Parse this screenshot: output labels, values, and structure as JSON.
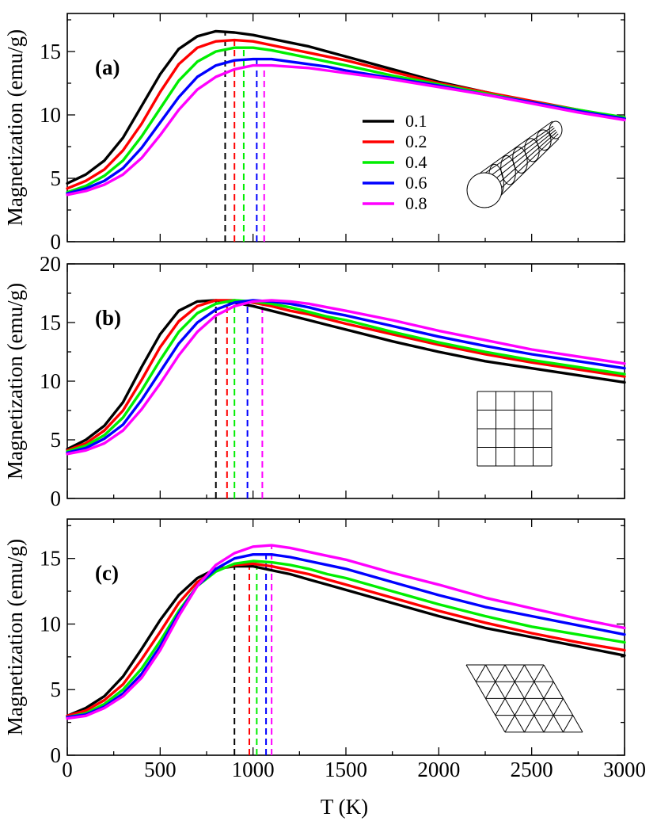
{
  "chart_data": [
    {
      "type": "line",
      "panel_label": "(a)",
      "xlabel": "T (K)",
      "ylabel": "Magnetization (emu/g)",
      "xlim": [
        0,
        3000
      ],
      "ylim": [
        0,
        18
      ],
      "xticks": [
        0,
        500,
        1000,
        1500,
        2000,
        2500,
        3000
      ],
      "yticks": [
        0,
        5,
        10,
        15
      ],
      "legend": [
        "0.1",
        "0.2",
        "0.4",
        "0.6",
        "0.8"
      ],
      "inset": "nanotube",
      "x": [
        0,
        100,
        200,
        300,
        400,
        500,
        600,
        700,
        800,
        900,
        1000,
        1100,
        1200,
        1300,
        1400,
        1500,
        1750,
        2000,
        2250,
        2500,
        2750,
        3000
      ],
      "series": [
        {
          "name": "0.1",
          "color": "#000000",
          "peak_T": 850,
          "values": [
            4.6,
            5.3,
            6.4,
            8.2,
            10.7,
            13.2,
            15.2,
            16.2,
            16.6,
            16.5,
            16.3,
            16.0,
            15.7,
            15.4,
            15.0,
            14.6,
            13.6,
            12.6,
            11.8,
            11.0,
            10.3,
            9.7
          ]
        },
        {
          "name": "0.2",
          "color": "#ff0000",
          "peak_T": 900,
          "values": [
            4.2,
            4.8,
            5.7,
            7.2,
            9.3,
            11.8,
            14.0,
            15.3,
            15.8,
            15.9,
            15.8,
            15.5,
            15.2,
            14.9,
            14.6,
            14.3,
            13.4,
            12.5,
            11.8,
            11.1,
            10.4,
            9.7
          ]
        },
        {
          "name": "0.4",
          "color": "#00ee00",
          "peak_T": 950,
          "values": [
            3.9,
            4.4,
            5.2,
            6.4,
            8.3,
            10.5,
            12.7,
            14.2,
            15.0,
            15.3,
            15.3,
            15.1,
            14.8,
            14.5,
            14.2,
            13.9,
            13.1,
            12.4,
            11.7,
            11.0,
            10.4,
            9.8
          ]
        },
        {
          "name": "0.6",
          "color": "#0000ff",
          "peak_T": 1020,
          "values": [
            3.8,
            4.2,
            4.8,
            5.8,
            7.4,
            9.4,
            11.4,
            13.0,
            13.9,
            14.3,
            14.4,
            14.4,
            14.2,
            14.0,
            13.8,
            13.5,
            12.9,
            12.3,
            11.6,
            11.0,
            10.3,
            9.7
          ]
        },
        {
          "name": "0.8",
          "color": "#ff00ff",
          "peak_T": 1060,
          "values": [
            3.7,
            4.0,
            4.5,
            5.3,
            6.6,
            8.4,
            10.4,
            12.0,
            13.0,
            13.6,
            13.9,
            13.9,
            13.8,
            13.7,
            13.5,
            13.3,
            12.8,
            12.2,
            11.6,
            10.9,
            10.2,
            9.6
          ]
        }
      ]
    },
    {
      "type": "line",
      "panel_label": "(b)",
      "xlabel": "T (K)",
      "ylabel": "Magnetization (emu/g)",
      "xlim": [
        0,
        3000
      ],
      "ylim": [
        0,
        20
      ],
      "xticks": [
        0,
        500,
        1000,
        1500,
        2000,
        2500,
        3000
      ],
      "yticks": [
        0,
        5,
        10,
        15,
        20
      ],
      "inset": "square-grid",
      "x": [
        0,
        100,
        200,
        300,
        400,
        500,
        600,
        700,
        800,
        900,
        1000,
        1100,
        1200,
        1300,
        1400,
        1500,
        1750,
        2000,
        2250,
        2500,
        2750,
        3000
      ],
      "series": [
        {
          "name": "0.1",
          "color": "#000000",
          "peak_T": 800,
          "values": [
            4.2,
            5.0,
            6.2,
            8.2,
            11.2,
            14.0,
            16.0,
            16.8,
            16.9,
            16.7,
            16.4,
            16.0,
            15.6,
            15.2,
            14.8,
            14.4,
            13.4,
            12.5,
            11.7,
            11.1,
            10.5,
            9.9
          ]
        },
        {
          "name": "0.2",
          "color": "#ff0000",
          "peak_T": 860,
          "values": [
            4.1,
            4.7,
            5.8,
            7.5,
            10.1,
            12.9,
            15.1,
            16.4,
            16.9,
            16.9,
            16.7,
            16.4,
            16.0,
            15.7,
            15.3,
            14.9,
            14.0,
            13.1,
            12.3,
            11.6,
            11.0,
            10.4
          ]
        },
        {
          "name": "0.4",
          "color": "#00ee00",
          "peak_T": 900,
          "values": [
            4.0,
            4.5,
            5.4,
            6.9,
            9.2,
            11.8,
            14.2,
            15.8,
            16.6,
            16.9,
            16.8,
            16.6,
            16.3,
            15.9,
            15.5,
            15.2,
            14.2,
            13.3,
            12.5,
            11.8,
            11.2,
            10.6
          ]
        },
        {
          "name": "0.6",
          "color": "#0000ff",
          "peak_T": 970,
          "values": [
            3.9,
            4.3,
            5.1,
            6.3,
            8.4,
            10.8,
            13.2,
            15.0,
            16.1,
            16.7,
            16.9,
            16.8,
            16.6,
            16.3,
            15.9,
            15.6,
            14.7,
            13.8,
            13.0,
            12.3,
            11.7,
            11.1
          ]
        },
        {
          "name": "0.8",
          "color": "#ff00ff",
          "peak_T": 1050,
          "values": [
            3.8,
            4.1,
            4.7,
            5.8,
            7.6,
            9.8,
            12.2,
            14.2,
            15.6,
            16.4,
            16.8,
            16.9,
            16.8,
            16.6,
            16.3,
            16.0,
            15.2,
            14.3,
            13.5,
            12.7,
            12.1,
            11.5
          ]
        }
      ]
    },
    {
      "type": "line",
      "panel_label": "(c)",
      "xlabel": "T (K)",
      "ylabel": "Magnetization (emu/g)",
      "xlim": [
        0,
        3000
      ],
      "ylim": [
        0,
        18
      ],
      "xticks": [
        0,
        500,
        1000,
        1500,
        2000,
        2500,
        3000
      ],
      "yticks": [
        0,
        5,
        10,
        15
      ],
      "inset": "triangular-grid",
      "x": [
        0,
        100,
        200,
        300,
        400,
        500,
        600,
        700,
        800,
        900,
        1000,
        1100,
        1200,
        1300,
        1400,
        1500,
        1750,
        2000,
        2250,
        2500,
        2750,
        3000
      ],
      "series": [
        {
          "name": "0.1",
          "color": "#000000",
          "peak_T": 900,
          "values": [
            3.0,
            3.6,
            4.5,
            6.0,
            8.1,
            10.3,
            12.2,
            13.5,
            14.2,
            14.4,
            14.4,
            14.1,
            13.8,
            13.4,
            13.0,
            12.6,
            11.6,
            10.6,
            9.7,
            9.0,
            8.3,
            7.6
          ]
        },
        {
          "name": "0.2",
          "color": "#ff0000",
          "peak_T": 980,
          "values": [
            3.0,
            3.4,
            4.2,
            5.4,
            7.3,
            9.4,
            11.6,
            13.2,
            14.1,
            14.5,
            14.6,
            14.4,
            14.1,
            13.8,
            13.4,
            13.0,
            12.0,
            11.0,
            10.1,
            9.3,
            8.6,
            8.0
          ]
        },
        {
          "name": "0.4",
          "color": "#00ee00",
          "peak_T": 1020,
          "values": [
            2.9,
            3.2,
            3.9,
            5.0,
            6.6,
            8.7,
            11.0,
            12.9,
            14.0,
            14.6,
            14.8,
            14.7,
            14.5,
            14.2,
            13.8,
            13.5,
            12.5,
            11.5,
            10.6,
            9.8,
            9.2,
            8.6
          ]
        },
        {
          "name": "0.6",
          "color": "#0000ff",
          "peak_T": 1070,
          "values": [
            2.9,
            3.1,
            3.7,
            4.7,
            6.2,
            8.3,
            10.8,
            12.9,
            14.2,
            15.0,
            15.3,
            15.3,
            15.1,
            14.8,
            14.5,
            14.2,
            13.2,
            12.2,
            11.3,
            10.6,
            9.9,
            9.2
          ]
        },
        {
          "name": "0.8",
          "color": "#ff00ff",
          "peak_T": 1100,
          "values": [
            2.8,
            3.0,
            3.6,
            4.5,
            5.9,
            8.0,
            10.6,
            12.9,
            14.5,
            15.4,
            15.9,
            16.0,
            15.8,
            15.5,
            15.2,
            14.9,
            13.9,
            13.0,
            12.0,
            11.2,
            10.4,
            9.7
          ]
        }
      ]
    }
  ]
}
